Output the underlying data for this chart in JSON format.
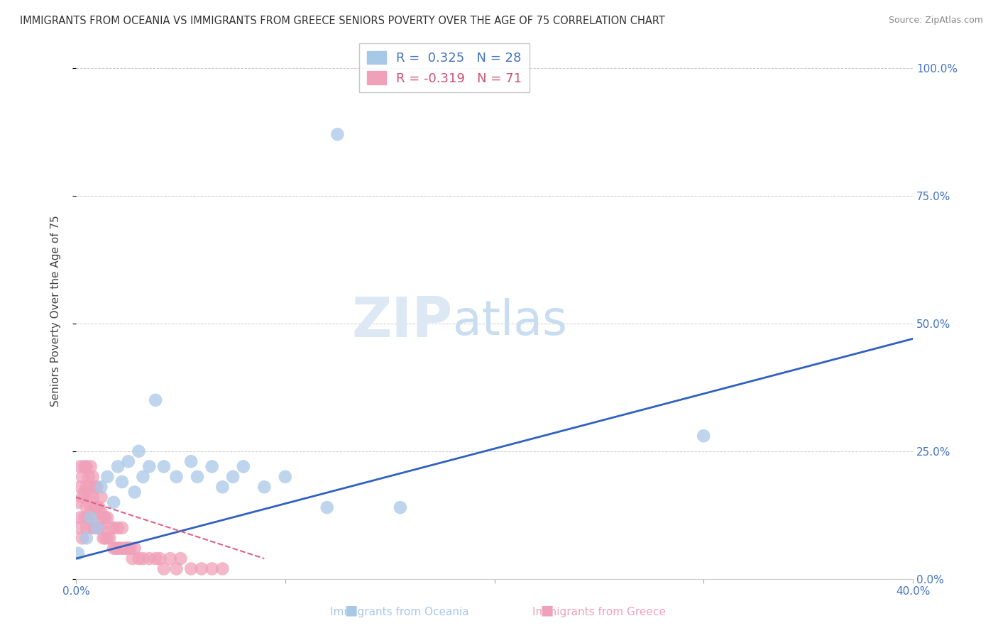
{
  "title": "IMMIGRANTS FROM OCEANIA VS IMMIGRANTS FROM GREECE SENIORS POVERTY OVER THE AGE OF 75 CORRELATION CHART",
  "source": "Source: ZipAtlas.com",
  "ylabel": "Seniors Poverty Over the Age of 75",
  "xlim": [
    0.0,
    0.4
  ],
  "ylim": [
    0.0,
    1.05
  ],
  "xticks": [
    0.0,
    0.1,
    0.2,
    0.3,
    0.4
  ],
  "xtick_labels": [
    "0.0%",
    "",
    "",
    "",
    "40.0%"
  ],
  "yticks": [
    0.0,
    0.25,
    0.5,
    0.75,
    1.0
  ],
  "right_ytick_labels": [
    "0.0%",
    "25.0%",
    "50.0%",
    "75.0%",
    "100.0%"
  ],
  "oceania_color": "#a8c8e8",
  "greece_color": "#f0a0b8",
  "oceania_line_color": "#3060c0",
  "greece_line_color": "#e06080",
  "oceania_R": 0.325,
  "oceania_N": 28,
  "greece_R": -0.319,
  "greece_N": 71,
  "legend_label_oceania": "Immigrants from Oceania",
  "legend_label_greece": "Immigrants from Greece",
  "background_color": "#ffffff",
  "oceania_scatter_x": [
    0.001,
    0.005,
    0.007,
    0.01,
    0.012,
    0.015,
    0.018,
    0.02,
    0.022,
    0.025,
    0.028,
    0.03,
    0.032,
    0.035,
    0.038,
    0.042,
    0.048,
    0.055,
    0.058,
    0.065,
    0.07,
    0.075,
    0.08,
    0.09,
    0.1,
    0.12,
    0.155,
    0.3
  ],
  "oceania_scatter_y": [
    0.05,
    0.08,
    0.12,
    0.1,
    0.18,
    0.2,
    0.15,
    0.22,
    0.19,
    0.23,
    0.17,
    0.25,
    0.2,
    0.22,
    0.35,
    0.22,
    0.2,
    0.23,
    0.2,
    0.22,
    0.18,
    0.2,
    0.22,
    0.18,
    0.2,
    0.14,
    0.14,
    0.28
  ],
  "oceania_outlier_x": [
    0.125
  ],
  "oceania_outlier_y": [
    0.87
  ],
  "greece_scatter_x": [
    0.001,
    0.001,
    0.002,
    0.002,
    0.002,
    0.003,
    0.003,
    0.003,
    0.004,
    0.004,
    0.004,
    0.005,
    0.005,
    0.005,
    0.005,
    0.006,
    0.006,
    0.006,
    0.007,
    0.007,
    0.007,
    0.007,
    0.008,
    0.008,
    0.008,
    0.009,
    0.009,
    0.009,
    0.01,
    0.01,
    0.01,
    0.011,
    0.011,
    0.012,
    0.012,
    0.012,
    0.013,
    0.013,
    0.014,
    0.014,
    0.015,
    0.015,
    0.016,
    0.017,
    0.018,
    0.018,
    0.019,
    0.02,
    0.02,
    0.021,
    0.022,
    0.022,
    0.023,
    0.024,
    0.025,
    0.026,
    0.027,
    0.028,
    0.03,
    0.032,
    0.035,
    0.038,
    0.04,
    0.042,
    0.045,
    0.048,
    0.05,
    0.055,
    0.06,
    0.065,
    0.07
  ],
  "greece_scatter_y": [
    0.1,
    0.15,
    0.12,
    0.18,
    0.22,
    0.08,
    0.16,
    0.2,
    0.12,
    0.17,
    0.22,
    0.1,
    0.14,
    0.18,
    0.22,
    0.12,
    0.16,
    0.2,
    0.1,
    0.14,
    0.18,
    0.22,
    0.12,
    0.16,
    0.2,
    0.1,
    0.14,
    0.18,
    0.1,
    0.14,
    0.18,
    0.1,
    0.14,
    0.1,
    0.13,
    0.16,
    0.08,
    0.12,
    0.08,
    0.12,
    0.08,
    0.12,
    0.08,
    0.1,
    0.06,
    0.1,
    0.06,
    0.06,
    0.1,
    0.06,
    0.06,
    0.1,
    0.06,
    0.06,
    0.06,
    0.06,
    0.04,
    0.06,
    0.04,
    0.04,
    0.04,
    0.04,
    0.04,
    0.02,
    0.04,
    0.02,
    0.04,
    0.02,
    0.02,
    0.02,
    0.02
  ],
  "oceania_line_x": [
    0.0,
    0.4
  ],
  "oceania_line_y": [
    0.04,
    0.47
  ],
  "greece_line_x": [
    0.0,
    0.09
  ],
  "greece_line_y": [
    0.16,
    0.04
  ]
}
